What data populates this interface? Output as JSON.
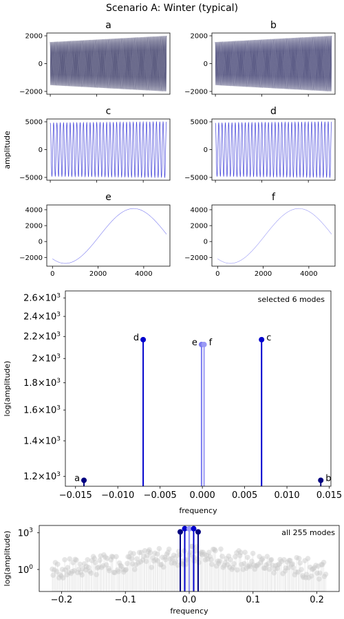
{
  "title": "Scenario A: Winter (typical)",
  "shared_ylabel": "amplitude",
  "panels": [
    {
      "label": "a",
      "kind": "sine",
      "amp_start": 1550,
      "amp_end": 2000,
      "cycles": 80,
      "color": "#1a1a4d",
      "ylim": [
        -2200,
        2200
      ],
      "yticks": [
        -2000,
        0,
        2000
      ],
      "xlim": [
        -150,
        5150
      ],
      "xticks": [
        0,
        2000,
        4000
      ],
      "show_xticklabels": false
    },
    {
      "label": "b",
      "kind": "sine",
      "amp_start": 1550,
      "amp_end": 2000,
      "cycles": 80,
      "color": "#1a1a55",
      "ylim": [
        -2200,
        2200
      ],
      "yticks": [
        -2000,
        0,
        2000
      ],
      "xlim": [
        -150,
        5150
      ],
      "xticks": [
        0,
        2000,
        4000
      ],
      "show_xticklabels": false
    },
    {
      "label": "c",
      "kind": "sine",
      "amp_start": 4800,
      "amp_end": 5000,
      "cycles": 35,
      "color": "#3f3fd8",
      "ylim": [
        -5500,
        5500
      ],
      "yticks": [
        -5000,
        0,
        5000
      ],
      "xlim": [
        -150,
        5150
      ],
      "xticks": [
        0,
        2000,
        4000
      ],
      "show_xticklabels": false
    },
    {
      "label": "d",
      "kind": "sine",
      "amp_start": 4800,
      "amp_end": 5000,
      "cycles": 35,
      "color": "#3f3fd8",
      "ylim": [
        -5500,
        5500
      ],
      "yticks": [
        -5000,
        0,
        5000
      ],
      "xlim": [
        -150,
        5150
      ],
      "xticks": [
        0,
        2000,
        4000
      ],
      "show_xticklabels": false
    },
    {
      "label": "e",
      "kind": "slow",
      "color": "#7b7bf0",
      "ylim": [
        -3100,
        4600
      ],
      "yticks": [
        -2000,
        0,
        2000,
        4000
      ],
      "xlim": [
        -250,
        5150
      ],
      "xticks": [
        0,
        2000,
        4000
      ],
      "show_xticklabels": true
    },
    {
      "label": "f",
      "kind": "slow",
      "color": "#9a9af5",
      "ylim": [
        -3100,
        4600
      ],
      "yticks": [
        -2000,
        0,
        2000,
        4000
      ],
      "xlim": [
        -250,
        5150
      ],
      "xticks": [
        0,
        2000,
        4000
      ],
      "show_xticklabels": true
    }
  ],
  "chart_data": [
    {
      "type": "scatter",
      "subtype": "stem",
      "annotation": "selected 6 modes",
      "xlabel": "frequency",
      "ylabel": "log(amplitude)",
      "yscale": "log",
      "xlim": [
        -0.0162,
        0.0152
      ],
      "ylim": [
        1150,
        2680
      ],
      "xticks": [
        -0.015,
        -0.01,
        -0.005,
        0.0,
        0.005,
        0.01,
        0.015
      ],
      "xticklabels": [
        "−0.015",
        "−0.010",
        "−0.005",
        "0.000",
        "0.005",
        "0.010",
        "0.015"
      ],
      "yticks": [
        1200,
        1400,
        1600,
        1800,
        2000,
        2200,
        2400,
        2600
      ],
      "yticklabels": [
        {
          "base": "1.2",
          "exp": "3"
        },
        {
          "base": "1.4",
          "exp": "3"
        },
        {
          "base": "1.6",
          "exp": "3"
        },
        {
          "base": "1.8",
          "exp": "3"
        },
        {
          "base": "2",
          "exp": "3"
        },
        {
          "base": "2.2",
          "exp": "3"
        },
        {
          "base": "2.4",
          "exp": "3"
        },
        {
          "base": "2.6",
          "exp": "3"
        }
      ],
      "points": [
        {
          "label": "a",
          "x": -0.014,
          "y": 1180,
          "color": "#000080",
          "label_side": "left"
        },
        {
          "label": "d",
          "x": -0.007,
          "y": 2170,
          "color": "#0000cd",
          "label_side": "left"
        },
        {
          "label": "e",
          "x": -0.0001,
          "y": 2125,
          "color": "#7b7bf0",
          "label_side": "left"
        },
        {
          "label": "f",
          "x": 0.0002,
          "y": 2125,
          "color": "#9a9af5",
          "label_side": "right"
        },
        {
          "label": "c",
          "x": 0.007,
          "y": 2170,
          "color": "#0000cd",
          "label_side": "right"
        },
        {
          "label": "b",
          "x": 0.014,
          "y": 1180,
          "color": "#000080",
          "label_side": "right"
        }
      ]
    },
    {
      "type": "scatter",
      "subtype": "stem",
      "annotation": "all 255 modes",
      "xlabel": "frequency",
      "ylabel": "log(amplitude)",
      "yscale": "log",
      "xlim": [
        -0.235,
        0.235
      ],
      "ylim_log10": [
        -1.8,
        3.6
      ],
      "xticks": [
        -0.2,
        -0.1,
        0.0,
        0.1,
        0.2
      ],
      "xticklabels": [
        "−0.2",
        "−0.1",
        "0.0",
        "0.1",
        "0.2"
      ],
      "yticks": [
        1,
        1000
      ],
      "yticklabels": [
        {
          "base": "10",
          "exp": "0"
        },
        {
          "base": "10",
          "exp": "3"
        }
      ],
      "mode_count": 255,
      "background_color": "#c8c8c8",
      "highlighted": [
        {
          "x": -0.014,
          "y": 1180,
          "color": "#000080"
        },
        {
          "x": -0.007,
          "y": 2170,
          "color": "#0000cd"
        },
        {
          "x": -0.0001,
          "y": 2125,
          "color": "#7b7bf0"
        },
        {
          "x": 0.0002,
          "y": 2125,
          "color": "#9a9af5"
        },
        {
          "x": 0.007,
          "y": 2170,
          "color": "#0000cd"
        },
        {
          "x": 0.014,
          "y": 1180,
          "color": "#000080"
        }
      ]
    }
  ]
}
